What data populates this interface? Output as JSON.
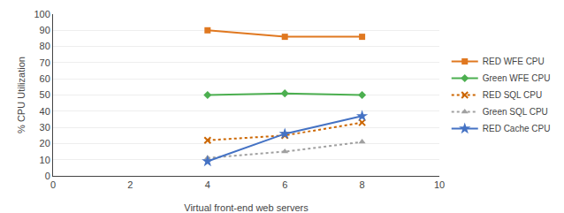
{
  "chart_data": {
    "type": "line",
    "x": [
      4,
      6,
      8
    ],
    "series": [
      {
        "name": "RED WFE CPU",
        "color": "#E07820",
        "values": [
          90,
          86,
          86
        ],
        "marker": "square",
        "line_style": "solid"
      },
      {
        "name": "Green WFE CPU",
        "color": "#4CAF50",
        "values": [
          50,
          51,
          50
        ],
        "marker": "diamond",
        "line_style": "solid"
      },
      {
        "name": "RED SQL CPU",
        "color": "#CC6600",
        "values": [
          22,
          25,
          33
        ],
        "marker": "x",
        "line_style": "dotted"
      },
      {
        "name": "Green SQL CPU",
        "color": "#A0A0A0",
        "values": [
          11,
          15,
          21
        ],
        "marker": "triangle",
        "line_style": "dotted"
      },
      {
        "name": "RED Cache CPU",
        "color": "#4472C4",
        "values": [
          9,
          26,
          37
        ],
        "marker": "star",
        "line_style": "solid"
      }
    ],
    "xlabel": "Virtual front-end web servers",
    "ylabel": "% CPU Utilization",
    "xlim": [
      0,
      10
    ],
    "ylim": [
      0,
      100
    ],
    "xticks": [
      0,
      2,
      4,
      6,
      8,
      10
    ],
    "yticks": [
      0,
      10,
      20,
      30,
      40,
      50,
      60,
      70,
      80,
      90,
      100
    ],
    "grid": true,
    "legend": "right"
  }
}
